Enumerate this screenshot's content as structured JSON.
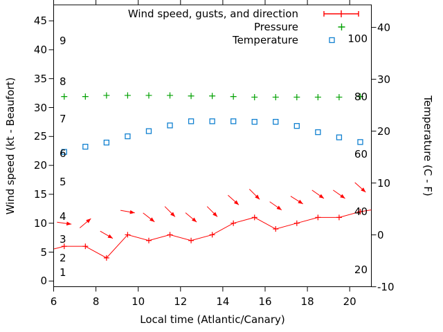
{
  "figure": {
    "xlabel": "Local time (Atlantic/Canary)",
    "ylabel": "Wind speed (kt - Beaufort)",
    "y2label": "Temperature (C - F)",
    "background": "#ffffff",
    "text_color": "#000000"
  },
  "legend": {
    "items": [
      {
        "label": "Wind speed, gusts, and direction",
        "color": "#ff0000",
        "sample": "line-with-caps-and-plus"
      },
      {
        "label": "Pressure",
        "color": "#00a000",
        "sample": "plus"
      },
      {
        "label": "Temperature",
        "color": "#1080d0",
        "sample": "open-square"
      }
    ]
  },
  "chart_data": {
    "type": "line",
    "title": "",
    "xlabel": "Local time (Atlantic/Canary)",
    "ylabel": "Wind speed (kt - Beaufort)",
    "y2label": "Temperature (C - F)",
    "grid": false,
    "legend_position": "top-right-inside",
    "x": [
      6.5,
      7.5,
      8.5,
      9.5,
      10.5,
      11.5,
      12.5,
      13.5,
      14.5,
      15.5,
      16.5,
      17.5,
      18.5,
      19.5,
      20.5
    ],
    "series": [
      {
        "name": "wind_speed_kt",
        "style": "line-plus-markers",
        "color": "#ff0000",
        "values": [
          6,
          6,
          4,
          8,
          7,
          8,
          7,
          8,
          10,
          11,
          9,
          10,
          11,
          11,
          12
        ],
        "clip_entry": {
          "x": 6.02,
          "y": 5.55
        },
        "clip_exit": {
          "x": 21.02,
          "y": 12.3
        }
      },
      {
        "name": "wind_gusts_kt_with_direction_arrows",
        "style": "direction-arrows",
        "color": "#ff0000",
        "values": [
          10,
          10,
          8,
          12,
          11,
          12,
          11,
          12,
          14,
          15,
          13,
          14,
          15,
          15,
          16.2
        ],
        "arrow_screen_angles_deg": [
          8,
          -40,
          30,
          10,
          38,
          45,
          40,
          45,
          42,
          45,
          35,
          32,
          35,
          35,
          42
        ]
      },
      {
        "name": "pressure",
        "style": "plus-markers",
        "color": "#00a000",
        "axis_note": "values given on left kt axis scale as plotted",
        "values": [
          31.9,
          31.9,
          32.1,
          32.1,
          32.1,
          32.1,
          32.0,
          32.0,
          31.9,
          31.8,
          31.8,
          31.8,
          31.8,
          31.8,
          31.9
        ]
      },
      {
        "name": "temperature_c",
        "style": "open-square-markers",
        "color": "#1080d0",
        "values": [
          16.0,
          17.0,
          17.8,
          19.0,
          20.0,
          21.1,
          21.9,
          21.9,
          21.9,
          21.8,
          21.8,
          21.0,
          19.8,
          18.8,
          17.9
        ]
      }
    ],
    "axes": {
      "x": {
        "min": 6,
        "max": 21.02,
        "ticks": [
          6,
          8,
          10,
          12,
          14,
          16,
          18,
          20
        ]
      },
      "y_left_kt": {
        "min": -1,
        "max": 47.8,
        "ticks": [
          0,
          5,
          10,
          15,
          20,
          25,
          30,
          35,
          40,
          45
        ]
      },
      "y_right_c": {
        "min": -10.1,
        "max": 40.3,
        "ticks": [
          -10,
          0,
          10,
          20,
          30,
          40
        ]
      },
      "beaufort_scale_labels": [
        {
          "label": "1",
          "kt": 1.5
        },
        {
          "label": "2",
          "kt": 4.0
        },
        {
          "label": "3",
          "kt": 7.2
        },
        {
          "label": "4",
          "kt": 11.2
        },
        {
          "label": "5",
          "kt": 17.1
        },
        {
          "label": "6",
          "kt": 22.1
        },
        {
          "label": "7",
          "kt": 28.0
        },
        {
          "label": "8",
          "kt": 34.5
        },
        {
          "label": "9",
          "kt": 41.5
        }
      ],
      "fahrenheit_scale_labels": [
        {
          "label": "20",
          "f": 20
        },
        {
          "label": "40",
          "f": 40
        },
        {
          "label": "60",
          "f": 60
        },
        {
          "label": "80",
          "f": 80
        },
        {
          "label": "100",
          "f": 100
        }
      ]
    }
  }
}
